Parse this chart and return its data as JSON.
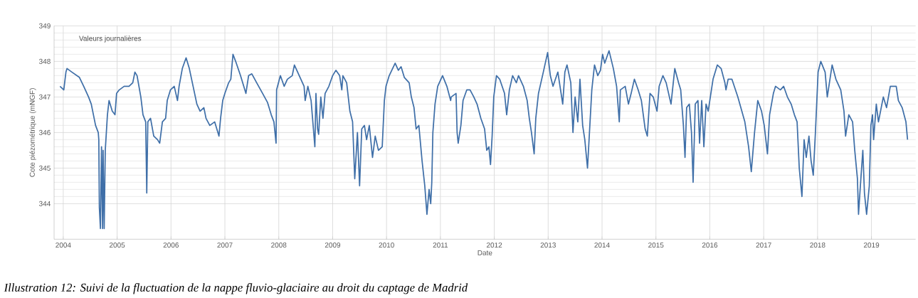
{
  "chart_data": {
    "type": "line",
    "xlabel": "Date",
    "ylabel": "Cote piézométrique (mNGF)",
    "annotations": [
      "Valeurs journalières",
      "Illustration 12: Suivi de la fluctuation de la nappe fluvio-glaciaire au droit du captage de Madrid"
    ],
    "xlim": [
      2003.83,
      2019.82
    ],
    "ylim": [
      343,
      349
    ],
    "xticks": [
      2004,
      2005,
      2006,
      2007,
      2008,
      2009,
      2010,
      2011,
      2012,
      2013,
      2014,
      2015,
      2016,
      2017,
      2018,
      2019
    ],
    "yticks": [
      344,
      345,
      346,
      347,
      348,
      349
    ],
    "grid": true,
    "marker": "none",
    "line_style": "solid",
    "series": [
      {
        "color": "#3f6fa8",
        "x": [
          2003.94,
          2004.01,
          2004.05,
          2004.07,
          2004.16,
          2004.3,
          2004.38,
          2004.47,
          2004.52,
          2004.6,
          2004.65,
          2004.66,
          2004.67,
          2004.69,
          2004.71,
          2004.73,
          2004.74,
          2004.76,
          2004.78,
          2004.82,
          2004.85,
          2004.91,
          2004.96,
          2004.99,
          2005.04,
          2005.13,
          2005.22,
          2005.29,
          2005.33,
          2005.37,
          2005.44,
          2005.48,
          2005.53,
          2005.55,
          2005.57,
          2005.62,
          2005.68,
          2005.75,
          2005.79,
          2005.84,
          2005.9,
          2005.93,
          2005.99,
          2006.06,
          2006.12,
          2006.15,
          2006.21,
          2006.28,
          2006.34,
          2006.41,
          2006.48,
          2006.54,
          2006.61,
          2006.65,
          2006.72,
          2006.81,
          2006.85,
          2006.89,
          2006.92,
          2006.96,
          2007.0,
          2007.07,
          2007.11,
          2007.15,
          2007.2,
          2007.29,
          2007.35,
          2007.39,
          2007.44,
          2007.5,
          2007.59,
          2007.7,
          2007.79,
          2007.86,
          2007.91,
          2007.95,
          2007.96,
          2008.03,
          2008.1,
          2008.16,
          2008.25,
          2008.29,
          2008.38,
          2008.47,
          2008.49,
          2008.54,
          2008.6,
          2008.67,
          2008.69,
          2008.72,
          2008.74,
          2008.78,
          2008.82,
          2008.86,
          2008.93,
          2009.0,
          2009.06,
          2009.13,
          2009.17,
          2009.19,
          2009.26,
          2009.32,
          2009.37,
          2009.41,
          2009.46,
          2009.5,
          2009.54,
          2009.59,
          2009.63,
          2009.68,
          2009.74,
          2009.79,
          2009.85,
          2009.92,
          2009.96,
          2009.99,
          2010.05,
          2010.16,
          2010.22,
          2010.27,
          2010.33,
          2010.42,
          2010.46,
          2010.51,
          2010.55,
          2010.6,
          2010.66,
          2010.71,
          2010.75,
          2010.79,
          2010.82,
          2010.84,
          2010.86,
          2010.9,
          2010.95,
          2011.04,
          2011.12,
          2011.19,
          2011.2,
          2011.29,
          2011.31,
          2011.33,
          2011.38,
          2011.42,
          2011.49,
          2011.55,
          2011.62,
          2011.68,
          2011.75,
          2011.82,
          2011.86,
          2011.9,
          2011.93,
          2011.96,
          2011.99,
          2012.04,
          2012.1,
          2012.19,
          2012.23,
          2012.28,
          2012.34,
          2012.41,
          2012.45,
          2012.54,
          2012.61,
          2012.65,
          2012.69,
          2012.74,
          2012.77,
          2012.82,
          2012.91,
          2012.99,
          2013.04,
          2013.09,
          2013.18,
          2013.24,
          2013.27,
          2013.31,
          2013.35,
          2013.42,
          2013.46,
          2013.5,
          2013.55,
          2013.59,
          2013.64,
          2013.68,
          2013.73,
          2013.77,
          2013.81,
          2013.86,
          2013.92,
          2013.97,
          2014.01,
          2014.05,
          2014.13,
          2014.21,
          2014.27,
          2014.32,
          2014.34,
          2014.43,
          2014.49,
          2014.54,
          2014.6,
          2014.67,
          2014.73,
          2014.8,
          2014.84,
          2014.89,
          2014.95,
          2015.02,
          2015.06,
          2015.13,
          2015.19,
          2015.28,
          2015.35,
          2015.42,
          2015.46,
          2015.51,
          2015.54,
          2015.57,
          2015.62,
          2015.66,
          2015.69,
          2015.73,
          2015.78,
          2015.81,
          2015.85,
          2015.89,
          2015.93,
          2015.97,
          2016.0,
          2016.06,
          2016.14,
          2016.21,
          2016.28,
          2016.3,
          2016.34,
          2016.41,
          2016.52,
          2016.65,
          2016.72,
          2016.77,
          2016.83,
          2016.89,
          2016.96,
          2017.01,
          2017.07,
          2017.11,
          2017.18,
          2017.22,
          2017.31,
          2017.37,
          2017.44,
          2017.51,
          2017.57,
          2017.62,
          2017.66,
          2017.71,
          2017.75,
          2017.79,
          2017.84,
          2017.88,
          2017.92,
          2017.96,
          2018.01,
          2018.06,
          2018.14,
          2018.18,
          2018.27,
          2018.34,
          2018.43,
          2018.49,
          2018.52,
          2018.58,
          2018.65,
          2018.69,
          2018.74,
          2018.76,
          2018.79,
          2018.84,
          2018.87,
          2018.91,
          2018.96,
          2018.99,
          2019.02,
          2019.04,
          2019.09,
          2019.13,
          2019.22,
          2019.28,
          2019.35,
          2019.46,
          2019.5,
          2019.57,
          2019.64,
          2019.67
        ],
        "values": [
          347.3,
          347.2,
          347.7,
          347.8,
          347.7,
          347.55,
          347.3,
          347.0,
          346.8,
          346.2,
          346.0,
          345.8,
          343.9,
          343.3,
          345.6,
          343.3,
          345.5,
          343.3,
          345.5,
          346.5,
          346.9,
          346.6,
          346.5,
          347.1,
          347.2,
          347.3,
          347.3,
          347.4,
          347.7,
          347.6,
          347.0,
          346.5,
          346.3,
          344.3,
          346.3,
          346.4,
          345.9,
          345.8,
          345.7,
          346.3,
          346.4,
          346.9,
          347.2,
          347.3,
          346.9,
          347.3,
          347.8,
          348.1,
          347.8,
          347.3,
          346.8,
          346.6,
          346.7,
          346.4,
          346.2,
          346.3,
          346.1,
          345.9,
          346.4,
          346.9,
          347.1,
          347.4,
          347.5,
          348.2,
          348.0,
          347.6,
          347.3,
          347.1,
          347.6,
          347.65,
          347.4,
          347.1,
          346.85,
          346.5,
          346.3,
          345.7,
          347.2,
          347.6,
          347.3,
          347.5,
          347.6,
          347.9,
          347.6,
          347.3,
          346.9,
          347.3,
          346.9,
          345.6,
          347.1,
          346.1,
          345.95,
          347.0,
          346.4,
          347.1,
          347.3,
          347.6,
          347.75,
          347.6,
          347.2,
          347.6,
          347.4,
          346.6,
          346.3,
          344.7,
          346.0,
          344.5,
          346.1,
          346.2,
          345.8,
          346.2,
          345.3,
          345.9,
          345.5,
          345.6,
          346.9,
          347.3,
          347.6,
          347.95,
          347.75,
          347.85,
          347.55,
          347.4,
          347.0,
          346.7,
          346.1,
          346.2,
          345.2,
          344.5,
          343.7,
          344.4,
          344.0,
          344.6,
          346.0,
          346.8,
          347.3,
          347.6,
          347.3,
          346.9,
          347.0,
          347.1,
          346.0,
          345.7,
          346.2,
          346.9,
          347.2,
          347.2,
          347.0,
          346.8,
          346.4,
          346.1,
          345.5,
          345.6,
          345.1,
          345.9,
          347.0,
          347.6,
          347.5,
          347.1,
          346.5,
          347.2,
          347.6,
          347.4,
          347.6,
          347.3,
          346.9,
          346.4,
          346.0,
          345.4,
          346.4,
          347.1,
          347.7,
          348.25,
          347.6,
          347.3,
          347.7,
          347.1,
          346.8,
          347.7,
          347.9,
          347.4,
          346.0,
          347.0,
          346.3,
          347.5,
          346.2,
          345.8,
          345.0,
          346.1,
          347.2,
          347.9,
          347.6,
          347.75,
          348.2,
          347.95,
          348.3,
          347.8,
          347.3,
          346.3,
          347.2,
          347.3,
          346.8,
          347.1,
          347.5,
          347.2,
          346.9,
          346.1,
          345.9,
          347.1,
          347.0,
          346.6,
          347.3,
          347.6,
          347.4,
          346.8,
          347.8,
          347.4,
          347.2,
          346.2,
          345.3,
          346.7,
          346.8,
          346.0,
          344.6,
          346.8,
          346.9,
          345.7,
          346.9,
          345.6,
          346.8,
          346.6,
          346.9,
          347.5,
          347.9,
          347.8,
          347.4,
          347.2,
          347.5,
          347.5,
          347.0,
          346.3,
          345.6,
          344.9,
          346.0,
          346.9,
          346.6,
          346.2,
          345.4,
          346.5,
          347.1,
          347.3,
          347.2,
          347.3,
          347.0,
          346.8,
          346.5,
          346.3,
          345.0,
          344.2,
          345.8,
          345.3,
          345.9,
          345.2,
          344.8,
          346.0,
          347.7,
          348.0,
          347.7,
          347.0,
          347.9,
          347.5,
          347.2,
          346.6,
          345.9,
          346.5,
          346.3,
          345.5,
          344.7,
          343.7,
          344.4,
          345.5,
          344.3,
          343.7,
          344.5,
          346.2,
          346.5,
          345.8,
          346.8,
          346.3,
          347.0,
          346.7,
          347.3,
          347.3,
          346.9,
          346.7,
          346.3,
          345.8
        ]
      }
    ]
  }
}
